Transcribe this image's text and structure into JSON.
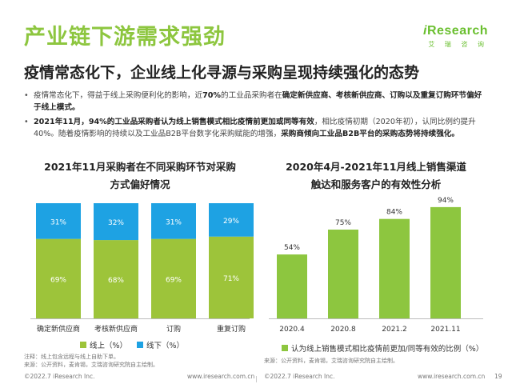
{
  "header": {
    "title": "产业链下游需求强劲",
    "subtitle": "疫情常态化下，企业线上化寻源与采购呈现持续强化的态势"
  },
  "logo": {
    "brand_prefix": "i",
    "brand_rest": "Research",
    "cn": "艾 瑞 咨 询"
  },
  "bullets": [
    {
      "segments": [
        {
          "text": "疫情常态化下，得益于线上采购便利化的影响，近",
          "bold": false
        },
        {
          "text": "70%",
          "bold": true
        },
        {
          "text": "的工业品采购者在",
          "bold": false
        },
        {
          "text": "确定新供应商、考核新供应商、订购以及重复订购环节偏好于线上模式。",
          "bold": true
        }
      ]
    },
    {
      "segments": [
        {
          "text": "2021年11月，94%的工业品采购者认为线上销售模式相比疫情前更加或同等有效",
          "bold": true
        },
        {
          "text": "，相比疫情初期（2020年初），认同比例约提升40%。随着疫情影响的持续以及工业品B2B平台数字化采购赋能的增强，",
          "bold": false
        },
        {
          "text": "采购商倾向工业品B2B平台的采购态势将持续强化。",
          "bold": true
        }
      ]
    }
  ],
  "chart_data": [
    {
      "type": "bar",
      "stacked": true,
      "percent_stacked": true,
      "title_lines": [
        "2021年11月采购者在不同采购环节对采购",
        "方式偏好情况"
      ],
      "categories": [
        "确定新供应商",
        "考核新供应商",
        "订购",
        "重复订购"
      ],
      "series": [
        {
          "name": "线上（%）",
          "values": [
            69,
            68,
            69,
            71
          ],
          "labels": [
            "69%",
            "68%",
            "69%",
            "71%"
          ],
          "color": "#9dc43a"
        },
        {
          "name": "线下（%）",
          "values": [
            31,
            32,
            31,
            29
          ],
          "labels": [
            "31%",
            "32%",
            "31%",
            "29%"
          ],
          "color": "#1ea2e3"
        }
      ],
      "ylim": [
        0,
        100
      ],
      "grid": false,
      "legend_position": "bottom",
      "note_lines": [
        "注释：线上包含远程与线上自助下单。",
        "来源：公开资料，麦肯锡，艾瑞咨询研究院自主绘制。"
      ]
    },
    {
      "type": "bar",
      "title_lines": [
        "2020年4月-2021年11月线上销售渠道",
        "触达和服务客户的有效性分析"
      ],
      "categories": [
        "2020.4",
        "2020.8",
        "2021.2",
        "2021.11"
      ],
      "series": [
        {
          "name": "认为线上销售模式相比疫情前更加/同等有效的比例（%）",
          "values": [
            54,
            75,
            84,
            94
          ],
          "labels": [
            "54%",
            "75%",
            "84%",
            "94%"
          ],
          "color": "#8dc63f"
        }
      ],
      "ylim": [
        0,
        100
      ],
      "grid": false,
      "legend_position": "bottom",
      "note_lines": [
        "来源：公开资料，麦肯锡，艾瑞咨询研究院自主绘制。"
      ]
    }
  ],
  "footer": {
    "left_copyright": "©2022.7 iResearch Inc.",
    "left_url": "www.iresearch.com.cn",
    "right_copyright": "©2022.7 iResearch Inc.",
    "right_url": "www.iresearch.com.cn",
    "page_number": "19"
  },
  "colors": {
    "title_green": "#8dc63f",
    "online_green": "#9dc43a",
    "offline_blue": "#1ea2e3",
    "bar_green": "#8dc63f"
  }
}
